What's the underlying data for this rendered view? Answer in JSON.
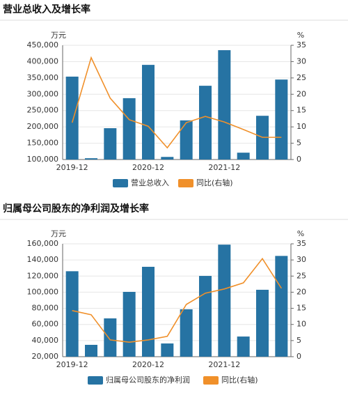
{
  "chart_data": [
    {
      "type": "bar",
      "title": "营业总收入及增长率",
      "y_label": "万元",
      "y2_label": "%",
      "categories": [
        "2019-12",
        null,
        null,
        null,
        "2020-12",
        null,
        null,
        null,
        "2021-12",
        null,
        null,
        null
      ],
      "series": [
        {
          "name": "营业总收入",
          "type": "bar",
          "color": "#2673a3",
          "values": [
            354000,
            104000,
            196000,
            288000,
            390000,
            108000,
            220000,
            326000,
            435000,
            121000,
            234000,
            345000
          ]
        },
        {
          "name": "同比(右轴)",
          "type": "line",
          "axis": "y2",
          "color": "#f0902a",
          "values": [
            11.3,
            31.2,
            18.8,
            12.2,
            10.2,
            3.6,
            11.3,
            13.2,
            11.5,
            9.2,
            6.8,
            6.8
          ]
        }
      ],
      "ylim": [
        100000,
        450000
      ],
      "yticks": [
        {
          "value": 100000,
          "label": "100,000"
        },
        {
          "value": 150000,
          "label": "150,000"
        },
        {
          "value": 200000,
          "label": "200,000"
        },
        {
          "value": 250000,
          "label": "250,000"
        },
        {
          "value": 300000,
          "label": "300,000"
        },
        {
          "value": 350000,
          "label": "350,000"
        },
        {
          "value": 400000,
          "label": "400,000"
        },
        {
          "value": 450000,
          "label": "450,000"
        }
      ],
      "y2lim": [
        0,
        35
      ],
      "y2ticks": [
        0,
        5,
        10,
        15,
        20,
        25,
        30,
        35
      ],
      "grid": true
    },
    {
      "type": "bar",
      "title": "归属母公司股东的净利润及增长率",
      "y_label": "万元",
      "y2_label": "%",
      "categories": [
        "2019-12",
        null,
        null,
        null,
        "2020-12",
        null,
        null,
        null,
        "2021-12",
        null,
        null,
        null
      ],
      "series": [
        {
          "name": "归属母公司股东的净利润",
          "type": "bar",
          "color": "#2673a3",
          "values": [
            126000,
            34700,
            67500,
            100400,
            131500,
            36400,
            78800,
            120200,
            159000,
            45000,
            103000,
            145000
          ]
        },
        {
          "name": "同比(右轴)",
          "type": "line",
          "axis": "y2",
          "color": "#f0902a",
          "values": [
            14.3,
            13,
            5.2,
            4.5,
            5.2,
            6.3,
            16.2,
            19.7,
            21,
            22.9,
            30.4,
            21.2
          ]
        }
      ],
      "ylim": [
        20000,
        160000
      ],
      "yticks": [
        {
          "value": 20000,
          "label": "20,000"
        },
        {
          "value": 40000,
          "label": "40,000"
        },
        {
          "value": 60000,
          "label": "60,000"
        },
        {
          "value": 80000,
          "label": "80,000"
        },
        {
          "value": 100000,
          "label": "100,000"
        },
        {
          "value": 120000,
          "label": "120,000"
        },
        {
          "value": 140000,
          "label": "140,000"
        },
        {
          "value": 160000,
          "label": "160,000"
        }
      ],
      "y2lim": [
        0,
        35
      ],
      "y2ticks": [
        0,
        5,
        10,
        15,
        20,
        25,
        30,
        35
      ],
      "grid": true
    }
  ]
}
